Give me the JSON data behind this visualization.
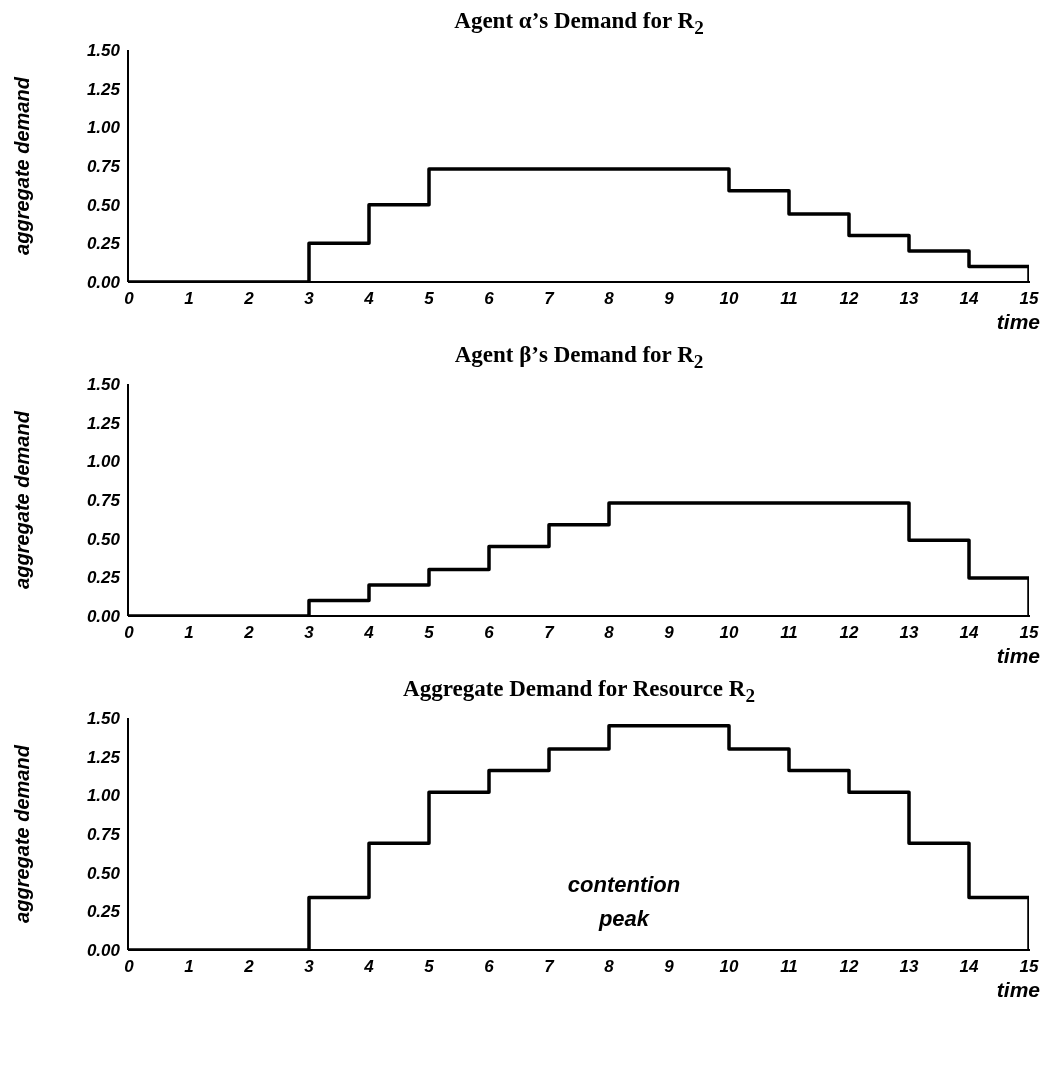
{
  "chart_data": [
    {
      "type": "step",
      "title": "Agent α’s Demand for R$_{2}$",
      "xlabel": "time",
      "ylabel": "aggregate demand",
      "x": [
        0,
        1,
        2,
        3,
        4,
        5,
        6,
        7,
        8,
        9,
        10,
        11,
        12,
        13,
        14,
        15
      ],
      "values": [
        0,
        0,
        0,
        0.25,
        0.5,
        0.73,
        0.73,
        0.73,
        0.73,
        0.73,
        0.59,
        0.44,
        0.3,
        0.2,
        0.1,
        0
      ],
      "color": "#000000",
      "xlim": [
        0,
        15
      ],
      "xticks": [
        0,
        1,
        2,
        3,
        4,
        5,
        6,
        7,
        8,
        9,
        10,
        11,
        12,
        13,
        14,
        15
      ],
      "ylim": [
        0,
        1.5
      ],
      "yticks": [
        {
          "value": 0,
          "label": "0.00"
        },
        {
          "value": 0.25,
          "label": "0.25"
        },
        {
          "value": 0.5,
          "label": "0.50"
        },
        {
          "value": 0.75,
          "label": "0.75"
        },
        {
          "value": 1,
          "label": "1.00"
        },
        {
          "value": 1.25,
          "label": "1.25"
        },
        {
          "value": 1.5,
          "label": "1.50"
        }
      ]
    },
    {
      "type": "step",
      "title": "Agent β’s Demand for R$_{2}$",
      "xlabel": "time",
      "ylabel": "aggregate demand",
      "x": [
        0,
        1,
        2,
        3,
        4,
        5,
        6,
        7,
        8,
        9,
        10,
        11,
        12,
        13,
        14,
        15
      ],
      "values": [
        0,
        0,
        0,
        0.1,
        0.2,
        0.3,
        0.45,
        0.59,
        0.73,
        0.73,
        0.73,
        0.73,
        0.73,
        0.49,
        0.245,
        0
      ],
      "color": "#000000",
      "xlim": [
        0,
        15
      ],
      "xticks": [
        0,
        1,
        2,
        3,
        4,
        5,
        6,
        7,
        8,
        9,
        10,
        11,
        12,
        13,
        14,
        15
      ],
      "ylim": [
        0,
        1.5
      ],
      "yticks": [
        {
          "value": 0,
          "label": "0.00"
        },
        {
          "value": 0.25,
          "label": "0.25"
        },
        {
          "value": 0.5,
          "label": "0.50"
        },
        {
          "value": 0.75,
          "label": "0.75"
        },
        {
          "value": 1,
          "label": "1.00"
        },
        {
          "value": 1.25,
          "label": "1.25"
        },
        {
          "value": 1.5,
          "label": "1.50"
        }
      ]
    },
    {
      "type": "step",
      "title": "Aggregate Demand for Resource R$_{2}$",
      "xlabel": "time",
      "ylabel": "aggregate demand",
      "annotations": [
        "contention peak"
      ],
      "x": [
        0,
        1,
        2,
        3,
        4,
        5,
        6,
        7,
        8,
        9,
        10,
        11,
        12,
        13,
        14,
        15
      ],
      "values": [
        0,
        0,
        0,
        0.34,
        0.69,
        1.02,
        1.16,
        1.3,
        1.45,
        1.45,
        1.3,
        1.16,
        1.02,
        0.69,
        0.34,
        0
      ],
      "color": "#000000",
      "xlim": [
        0,
        15
      ],
      "xticks": [
        0,
        1,
        2,
        3,
        4,
        5,
        6,
        7,
        8,
        9,
        10,
        11,
        12,
        13,
        14,
        15
      ],
      "ylim": [
        0,
        1.5
      ],
      "yticks": [
        {
          "value": 0,
          "label": "0.00"
        },
        {
          "value": 0.25,
          "label": "0.25"
        },
        {
          "value": 0.5,
          "label": "0.50"
        },
        {
          "value": 0.75,
          "label": "0.75"
        },
        {
          "value": 1,
          "label": "1.00"
        },
        {
          "value": 1.25,
          "label": "1.25"
        },
        {
          "value": 1.5,
          "label": "1.50"
        }
      ]
    }
  ]
}
